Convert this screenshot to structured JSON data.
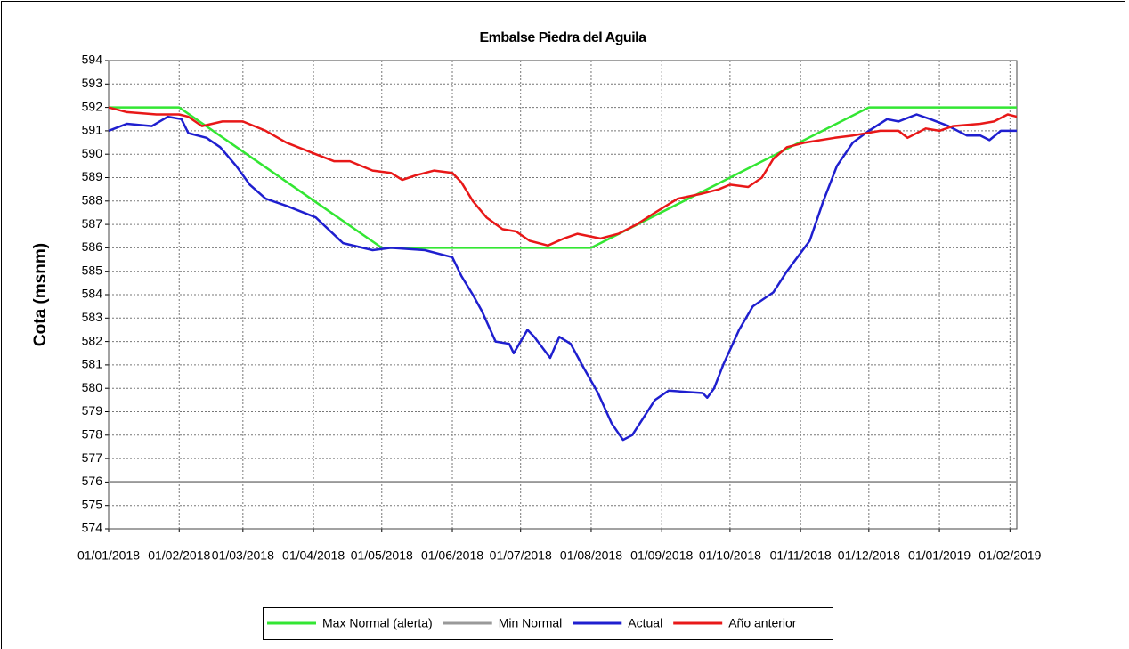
{
  "chart_data": {
    "type": "line",
    "title": "Embalse Piedra del Aguila",
    "y_label": "Cota (msnm)",
    "xlim": [
      "2018-01-01",
      "2019-02-04"
    ],
    "xticks": [
      {
        "value": "2018-01-01",
        "label": "01/01/2018"
      },
      {
        "value": "2018-02-01",
        "label": "01/02/2018"
      },
      {
        "value": "2018-03-01",
        "label": "01/03/2018"
      },
      {
        "value": "2018-04-01",
        "label": "01/04/2018"
      },
      {
        "value": "2018-05-01",
        "label": "01/05/2018"
      },
      {
        "value": "2018-06-01",
        "label": "01/06/2018"
      },
      {
        "value": "2018-07-01",
        "label": "01/07/2018"
      },
      {
        "value": "2018-08-01",
        "label": "01/08/2018"
      },
      {
        "value": "2018-09-01",
        "label": "01/09/2018"
      },
      {
        "value": "2018-10-01",
        "label": "01/10/2018"
      },
      {
        "value": "2018-11-01",
        "label": "01/11/2018"
      },
      {
        "value": "2018-12-01",
        "label": "01/12/2018"
      },
      {
        "value": "2019-01-01",
        "label": "01/01/2019"
      },
      {
        "value": "2019-02-01",
        "label": "01/02/2019"
      }
    ],
    "ylim": [
      574,
      594
    ],
    "yticks": [
      574,
      575,
      576,
      577,
      578,
      579,
      580,
      581,
      582,
      583,
      584,
      585,
      586,
      587,
      588,
      589,
      590,
      591,
      592,
      593,
      594
    ],
    "grid": true,
    "legend": "bottom",
    "series": [
      {
        "name": "Max Normal (alerta)",
        "color": "#33e633",
        "x": [
          "2018-01-01",
          "2018-02-01",
          "2018-05-01",
          "2018-08-01",
          "2018-12-01",
          "2019-02-04"
        ],
        "values": [
          592,
          592,
          586,
          586,
          592,
          592
        ]
      },
      {
        "name": "Min Normal",
        "color": "#999999",
        "x": [
          "2018-01-01",
          "2019-02-04"
        ],
        "values": [
          576,
          576
        ]
      },
      {
        "name": "Actual",
        "color": "#1f1fcf",
        "x": [
          "2018-01-01",
          "2018-01-09",
          "2018-01-20",
          "2018-01-27",
          "2018-02-02",
          "2018-02-05",
          "2018-02-13",
          "2018-02-19",
          "2018-02-26",
          "2018-03-04",
          "2018-03-11",
          "2018-03-20",
          "2018-04-02",
          "2018-04-14",
          "2018-04-27",
          "2018-05-05",
          "2018-05-20",
          "2018-05-28",
          "2018-06-01",
          "2018-06-05",
          "2018-06-10",
          "2018-06-14",
          "2018-06-20",
          "2018-06-26",
          "2018-06-28",
          "2018-07-04",
          "2018-07-07",
          "2018-07-14",
          "2018-07-18",
          "2018-07-23",
          "2018-07-28",
          "2018-08-04",
          "2018-08-10",
          "2018-08-15",
          "2018-08-19",
          "2018-08-29",
          "2018-09-04",
          "2018-09-19",
          "2018-09-21",
          "2018-09-24",
          "2018-09-28",
          "2018-10-05",
          "2018-10-11",
          "2018-10-20",
          "2018-10-26",
          "2018-11-05",
          "2018-11-11",
          "2018-11-17",
          "2018-11-24",
          "2018-12-01",
          "2018-12-09",
          "2018-12-14",
          "2018-12-22",
          "2018-12-28",
          "2019-01-05",
          "2019-01-13",
          "2019-01-19",
          "2019-01-23",
          "2019-01-28",
          "2019-02-04"
        ],
        "values": [
          591.0,
          591.3,
          591.2,
          591.6,
          591.5,
          590.9,
          590.7,
          590.3,
          589.5,
          588.7,
          588.1,
          587.8,
          587.3,
          586.2,
          585.9,
          586.0,
          585.9,
          585.7,
          585.6,
          584.8,
          584.0,
          583.3,
          582.0,
          581.9,
          581.5,
          582.5,
          582.2,
          581.3,
          582.2,
          581.9,
          581.0,
          579.8,
          578.5,
          577.8,
          578.0,
          579.5,
          579.9,
          579.8,
          579.6,
          580.0,
          581.0,
          582.5,
          583.5,
          584.1,
          585.0,
          586.3,
          588.0,
          589.5,
          590.5,
          591.0,
          591.5,
          591.4,
          591.7,
          591.5,
          591.2,
          590.8,
          590.8,
          590.6,
          591.0,
          591.0
        ]
      },
      {
        "name": "Año anterior",
        "color": "#e81818",
        "x": [
          "2018-01-01",
          "2018-01-09",
          "2018-01-22",
          "2018-02-01",
          "2018-02-05",
          "2018-02-11",
          "2018-02-20",
          "2018-03-01",
          "2018-03-11",
          "2018-03-20",
          "2018-04-02",
          "2018-04-10",
          "2018-04-17",
          "2018-04-27",
          "2018-05-05",
          "2018-05-10",
          "2018-05-16",
          "2018-05-24",
          "2018-06-01",
          "2018-06-05",
          "2018-06-10",
          "2018-06-16",
          "2018-06-23",
          "2018-06-29",
          "2018-07-05",
          "2018-07-13",
          "2018-07-20",
          "2018-07-26",
          "2018-08-05",
          "2018-08-13",
          "2018-08-21",
          "2018-08-29",
          "2018-09-08",
          "2018-09-18",
          "2018-09-26",
          "2018-10-01",
          "2018-10-09",
          "2018-10-15",
          "2018-10-20",
          "2018-10-26",
          "2018-11-03",
          "2018-11-16",
          "2018-11-24",
          "2018-12-06",
          "2018-12-14",
          "2018-12-18",
          "2018-12-26",
          "2019-01-01",
          "2019-01-07",
          "2019-01-19",
          "2019-01-25",
          "2019-01-31",
          "2019-02-04"
        ],
        "values": [
          592.0,
          591.8,
          591.7,
          591.7,
          591.6,
          591.2,
          591.4,
          591.4,
          591.0,
          590.5,
          590.0,
          589.7,
          589.7,
          589.3,
          589.2,
          588.9,
          589.1,
          589.3,
          589.2,
          588.8,
          588.0,
          587.3,
          586.8,
          586.7,
          586.3,
          586.1,
          586.4,
          586.6,
          586.4,
          586.6,
          587.0,
          587.5,
          588.1,
          588.3,
          588.5,
          588.7,
          588.6,
          589.0,
          589.8,
          590.3,
          590.5,
          590.7,
          590.8,
          591.0,
          591.0,
          590.7,
          591.1,
          591.0,
          591.2,
          591.3,
          591.4,
          591.7,
          591.6
        ]
      }
    ]
  }
}
